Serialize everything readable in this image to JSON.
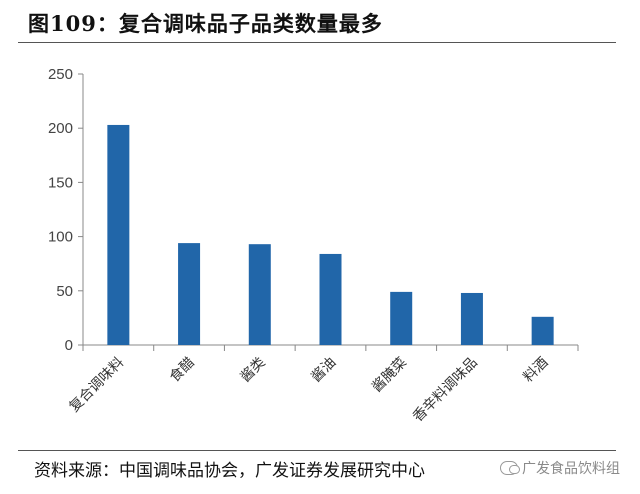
{
  "header": {
    "title": "图109：复合调味品子品类数量最多"
  },
  "footer": {
    "source": "资料来源：中国调味品协会，广发证券发展研究中心",
    "watermark": "广发食品饮料组",
    "watermark_icon": "wechat-icon"
  },
  "chart_data": {
    "type": "bar",
    "title": "",
    "xlabel": "",
    "ylabel": "",
    "categories": [
      "复合调味料",
      "食醋",
      "酱类",
      "酱油",
      "酱腌菜",
      "香辛料调味品",
      "料酒"
    ],
    "values": [
      203,
      94,
      93,
      84,
      49,
      48,
      26
    ],
    "ylim": [
      0,
      250
    ],
    "yticks": [
      0,
      50,
      100,
      150,
      200,
      250
    ],
    "grid": false,
    "legend": "none",
    "bar_color": "#2166A9"
  }
}
